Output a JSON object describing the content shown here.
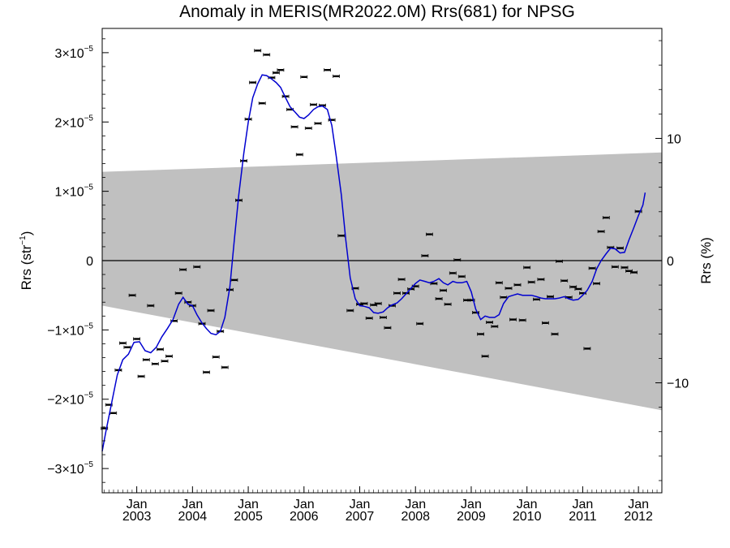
{
  "chart_data": {
    "type": "scatter",
    "title": "Anomaly in MERIS(MR2022.0M) Rrs(681) for NPSG",
    "ylabel_left": {
      "base": "Rrs (str",
      "sup": "−1",
      "tail": ")"
    },
    "ylabel_right": "Rrs (%)",
    "xlim": [
      2002.38,
      2012.42
    ],
    "ylim_left": [
      -3.35e-05,
      3.35e-05
    ],
    "ylim_right": [
      -19,
      19
    ],
    "y_ticks_left": [
      {
        "value": 3e-05,
        "mant": "3×10",
        "exp": "−5"
      },
      {
        "value": 2e-05,
        "mant": "2×10",
        "exp": "−5"
      },
      {
        "value": 1e-05,
        "mant": "1×10",
        "exp": "−5"
      },
      {
        "value": 0,
        "mant": "0",
        "exp": ""
      },
      {
        "value": -1e-05,
        "mant": "−1×10",
        "exp": "−5"
      },
      {
        "value": -2e-05,
        "mant": "−2×10",
        "exp": "−5"
      },
      {
        "value": -3e-05,
        "mant": "−3×10",
        "exp": "−5"
      }
    ],
    "y_ticks_right": [
      {
        "value": 10,
        "label": "10"
      },
      {
        "value": 0,
        "label": "0"
      },
      {
        "value": -10,
        "label": "−10"
      }
    ],
    "x_ticks": [
      {
        "value": 2003.0,
        "month": "Jan",
        "year": "2003"
      },
      {
        "value": 2004.0,
        "month": "Jan",
        "year": "2004"
      },
      {
        "value": 2005.0,
        "month": "Jan",
        "year": "2005"
      },
      {
        "value": 2006.0,
        "month": "Jan",
        "year": "2006"
      },
      {
        "value": 2007.0,
        "month": "Jan",
        "year": "2007"
      },
      {
        "value": 2008.0,
        "month": "Jan",
        "year": "2008"
      },
      {
        "value": 2009.0,
        "month": "Jan",
        "year": "2009"
      },
      {
        "value": 2010.0,
        "month": "Jan",
        "year": "2010"
      },
      {
        "value": 2011.0,
        "month": "Jan",
        "year": "2011"
      },
      {
        "value": 2012.0,
        "month": "Jan",
        "year": "2012"
      }
    ],
    "uncertainty_band": {
      "color": "#c0c0c0",
      "upper": [
        [
          2002.38,
          1.28e-05
        ],
        [
          2012.42,
          1.56e-05
        ]
      ],
      "lower": [
        [
          2002.38,
          -6.5e-06
        ],
        [
          2012.42,
          -2.16e-05
        ]
      ]
    },
    "zero_line_color": "#000000",
    "series": [
      {
        "kind": "monthly_points",
        "color": "#000000",
        "points": [
          [
            2002.42,
            -2.42e-05
          ],
          [
            2002.5,
            -2.08e-05
          ],
          [
            2002.58,
            -2.2e-05
          ],
          [
            2002.67,
            -1.58e-05
          ],
          [
            2002.75,
            -1.19e-05
          ],
          [
            2002.83,
            -1.25e-05
          ],
          [
            2002.92,
            -5e-06
          ],
          [
            2003.0,
            -1.13e-05
          ],
          [
            2003.08,
            -1.67e-05
          ],
          [
            2003.17,
            -1.43e-05
          ],
          [
            2003.25,
            -6.5e-06
          ],
          [
            2003.33,
            -1.49e-05
          ],
          [
            2003.42,
            -1.28e-05
          ],
          [
            2003.5,
            -1.45e-05
          ],
          [
            2003.58,
            -1.38e-05
          ],
          [
            2003.67,
            -8.7e-06
          ],
          [
            2003.75,
            -4.7e-06
          ],
          [
            2003.83,
            -1.3e-06
          ],
          [
            2003.92,
            -6e-06
          ],
          [
            2004.0,
            -6.5e-06
          ],
          [
            2004.08,
            -9e-07
          ],
          [
            2004.17,
            -9.1e-06
          ],
          [
            2004.25,
            -1.61e-05
          ],
          [
            2004.33,
            -7.2e-06
          ],
          [
            2004.42,
            -1.39e-05
          ],
          [
            2004.5,
            -1.02e-05
          ],
          [
            2004.58,
            -1.54e-05
          ],
          [
            2004.67,
            -4.2e-06
          ],
          [
            2004.75,
            -2.8e-06
          ],
          [
            2004.83,
            8.7e-06
          ],
          [
            2004.92,
            1.44e-05
          ],
          [
            2005.0,
            2.04e-05
          ],
          [
            2005.08,
            2.57e-05
          ],
          [
            2005.17,
            3.03e-05
          ],
          [
            2005.25,
            2.27e-05
          ],
          [
            2005.33,
            2.97e-05
          ],
          [
            2005.42,
            2.64e-05
          ],
          [
            2005.5,
            2.71e-05
          ],
          [
            2005.58,
            2.75e-05
          ],
          [
            2005.67,
            2.37e-05
          ],
          [
            2005.75,
            2.18e-05
          ],
          [
            2005.83,
            1.93e-05
          ],
          [
            2005.92,
            1.53e-05
          ],
          [
            2006.0,
            2.65e-05
          ],
          [
            2006.08,
            1.91e-05
          ],
          [
            2006.17,
            2.25e-05
          ],
          [
            2006.25,
            1.98e-05
          ],
          [
            2006.33,
            2.24e-05
          ],
          [
            2006.42,
            2.75e-05
          ],
          [
            2006.5,
            2.03e-05
          ],
          [
            2006.58,
            2.66e-05
          ],
          [
            2006.67,
            3.6e-06
          ],
          [
            2006.83,
            -7.2e-06
          ],
          [
            2006.92,
            -4e-06
          ],
          [
            2007.0,
            -6.3e-06
          ],
          [
            2007.08,
            -6.2e-06
          ],
          [
            2007.17,
            -8.3e-06
          ],
          [
            2007.25,
            -6.4e-06
          ],
          [
            2007.33,
            -6.2e-06
          ],
          [
            2007.42,
            -8.2e-06
          ],
          [
            2007.5,
            -9.7e-06
          ],
          [
            2007.58,
            -6.5e-06
          ],
          [
            2007.67,
            -4.7e-06
          ],
          [
            2007.75,
            -2.7e-06
          ],
          [
            2007.83,
            -4.7e-06
          ],
          [
            2007.92,
            -4.1e-06
          ],
          [
            2008.0,
            -3.7e-06
          ],
          [
            2008.08,
            -9.1e-06
          ],
          [
            2008.17,
            7e-07
          ],
          [
            2008.25,
            3.8e-06
          ],
          [
            2008.33,
            -3.3e-06
          ],
          [
            2008.42,
            -5.5e-06
          ],
          [
            2008.5,
            -4.3e-06
          ],
          [
            2008.58,
            -6.3e-06
          ],
          [
            2008.67,
            -1.8e-06
          ],
          [
            2008.75,
            1e-07
          ],
          [
            2008.83,
            -2.3e-06
          ],
          [
            2008.92,
            -5.7e-06
          ],
          [
            2009.0,
            -5.7e-06
          ],
          [
            2009.08,
            -7.5e-06
          ],
          [
            2009.17,
            -1.06e-05
          ],
          [
            2009.25,
            -1.38e-05
          ],
          [
            2009.33,
            -8.9e-06
          ],
          [
            2009.42,
            -9.5e-06
          ],
          [
            2009.5,
            -3.2e-06
          ],
          [
            2009.58,
            -5.3e-06
          ],
          [
            2009.67,
            -4e-06
          ],
          [
            2009.75,
            -8.5e-06
          ],
          [
            2009.83,
            -3.5e-06
          ],
          [
            2009.92,
            -8.6e-06
          ],
          [
            2010.0,
            -1e-06
          ],
          [
            2010.08,
            -3.1e-06
          ],
          [
            2010.17,
            -5.6e-06
          ],
          [
            2010.25,
            -2.7e-06
          ],
          [
            2010.33,
            -9e-06
          ],
          [
            2010.42,
            -5.2e-06
          ],
          [
            2010.5,
            -1.06e-05
          ],
          [
            2010.58,
            -1e-07
          ],
          [
            2010.67,
            -2.9e-06
          ],
          [
            2010.75,
            -5.3e-06
          ],
          [
            2010.83,
            -3.8e-06
          ],
          [
            2010.92,
            -4.1e-06
          ],
          [
            2011.0,
            -4.7e-06
          ],
          [
            2011.08,
            -1.27e-05
          ],
          [
            2011.17,
            -1.1e-06
          ],
          [
            2011.25,
            -3.3e-06
          ],
          [
            2011.33,
            4.2e-06
          ],
          [
            2011.42,
            6.2e-06
          ],
          [
            2011.5,
            1.9e-06
          ],
          [
            2011.58,
            -9e-07
          ],
          [
            2011.67,
            1.8e-06
          ],
          [
            2011.75,
            -1e-06
          ],
          [
            2011.83,
            -1.5e-06
          ],
          [
            2011.92,
            -1.7e-06
          ],
          [
            2012.0,
            7.1e-06
          ]
        ]
      },
      {
        "kind": "running_mean",
        "color": "#0000d0",
        "points": [
          [
            2002.38,
            -2.75e-05
          ],
          [
            2002.45,
            -2.45e-05
          ],
          [
            2002.55,
            -2.05e-05
          ],
          [
            2002.65,
            -1.65e-05
          ],
          [
            2002.75,
            -1.43e-05
          ],
          [
            2002.85,
            -1.35e-05
          ],
          [
            2002.95,
            -1.18e-05
          ],
          [
            2003.05,
            -1.17e-05
          ],
          [
            2003.15,
            -1.3e-05
          ],
          [
            2003.25,
            -1.33e-05
          ],
          [
            2003.35,
            -1.25e-05
          ],
          [
            2003.45,
            -1.1e-05
          ],
          [
            2003.55,
            -9.8e-06
          ],
          [
            2003.65,
            -8.5e-06
          ],
          [
            2003.75,
            -6.3e-06
          ],
          [
            2003.83,
            -5.3e-06
          ],
          [
            2003.92,
            -6.3e-06
          ],
          [
            2004.0,
            -6.5e-06
          ],
          [
            2004.08,
            -7.8e-06
          ],
          [
            2004.17,
            -9e-06
          ],
          [
            2004.25,
            -9.8e-06
          ],
          [
            2004.33,
            -1.05e-05
          ],
          [
            2004.42,
            -1.07e-05
          ],
          [
            2004.5,
            -1.02e-05
          ],
          [
            2004.58,
            -8.2e-06
          ],
          [
            2004.67,
            -3.8e-06
          ],
          [
            2004.75,
            3e-06
          ],
          [
            2004.83,
            9.5e-06
          ],
          [
            2004.92,
            1.55e-05
          ],
          [
            2005.0,
            2e-05
          ],
          [
            2005.08,
            2.35e-05
          ],
          [
            2005.17,
            2.55e-05
          ],
          [
            2005.25,
            2.68e-05
          ],
          [
            2005.33,
            2.67e-05
          ],
          [
            2005.42,
            2.62e-05
          ],
          [
            2005.5,
            2.57e-05
          ],
          [
            2005.58,
            2.5e-05
          ],
          [
            2005.67,
            2.35e-05
          ],
          [
            2005.75,
            2.22e-05
          ],
          [
            2005.83,
            2.15e-05
          ],
          [
            2005.92,
            2.07e-05
          ],
          [
            2006.0,
            2.05e-05
          ],
          [
            2006.08,
            2.1e-05
          ],
          [
            2006.17,
            2.18e-05
          ],
          [
            2006.25,
            2.22e-05
          ],
          [
            2006.33,
            2.23e-05
          ],
          [
            2006.42,
            2.18e-05
          ],
          [
            2006.5,
            1.95e-05
          ],
          [
            2006.58,
            1.5e-05
          ],
          [
            2006.67,
            9.5e-06
          ],
          [
            2006.75,
            3e-06
          ],
          [
            2006.83,
            -2.5e-06
          ],
          [
            2006.92,
            -5.5e-06
          ],
          [
            2007.0,
            -6.5e-06
          ],
          [
            2007.08,
            -6.6e-06
          ],
          [
            2007.17,
            -6.8e-06
          ],
          [
            2007.25,
            -7.5e-06
          ],
          [
            2007.33,
            -7.6e-06
          ],
          [
            2007.42,
            -7.4e-06
          ],
          [
            2007.5,
            -6.8e-06
          ],
          [
            2007.58,
            -6.4e-06
          ],
          [
            2007.67,
            -6.1e-06
          ],
          [
            2007.75,
            -5.5e-06
          ],
          [
            2007.83,
            -4.8e-06
          ],
          [
            2007.92,
            -4e-06
          ],
          [
            2008.0,
            -3.3e-06
          ],
          [
            2008.08,
            -2.8e-06
          ],
          [
            2008.17,
            -3e-06
          ],
          [
            2008.25,
            -3.2e-06
          ],
          [
            2008.33,
            -3e-06
          ],
          [
            2008.42,
            -2.6e-06
          ],
          [
            2008.5,
            -3.2e-06
          ],
          [
            2008.58,
            -3.5e-06
          ],
          [
            2008.67,
            -3e-06
          ],
          [
            2008.75,
            -3.2e-06
          ],
          [
            2008.83,
            -3.2e-06
          ],
          [
            2008.92,
            -3e-06
          ],
          [
            2009.0,
            -4.5e-06
          ],
          [
            2009.08,
            -7e-06
          ],
          [
            2009.17,
            -8.5e-06
          ],
          [
            2009.25,
            -8e-06
          ],
          [
            2009.33,
            -8.2e-06
          ],
          [
            2009.42,
            -8.2e-06
          ],
          [
            2009.5,
            -7.8e-06
          ],
          [
            2009.58,
            -6.2e-06
          ],
          [
            2009.67,
            -5.2e-06
          ],
          [
            2009.75,
            -5e-06
          ],
          [
            2009.83,
            -4.8e-06
          ],
          [
            2009.92,
            -5e-06
          ],
          [
            2010.0,
            -5e-06
          ],
          [
            2010.08,
            -5e-06
          ],
          [
            2010.17,
            -5.2e-06
          ],
          [
            2010.25,
            -5.4e-06
          ],
          [
            2010.33,
            -5.5e-06
          ],
          [
            2010.42,
            -5.5e-06
          ],
          [
            2010.5,
            -5.5e-06
          ],
          [
            2010.58,
            -5.4e-06
          ],
          [
            2010.67,
            -5.2e-06
          ],
          [
            2010.75,
            -5.5e-06
          ],
          [
            2010.83,
            -5.7e-06
          ],
          [
            2010.92,
            -5.6e-06
          ],
          [
            2011.0,
            -5e-06
          ],
          [
            2011.08,
            -4.3e-06
          ],
          [
            2011.17,
            -3e-06
          ],
          [
            2011.25,
            -1.2e-06
          ],
          [
            2011.33,
            0.0
          ],
          [
            2011.42,
            1e-06
          ],
          [
            2011.5,
            1.8e-06
          ],
          [
            2011.58,
            1.7e-06
          ],
          [
            2011.67,
            1.1e-06
          ],
          [
            2011.75,
            1.2e-06
          ],
          [
            2011.83,
            3e-06
          ],
          [
            2011.92,
            4.8e-06
          ],
          [
            2012.0,
            6.5e-06
          ],
          [
            2012.08,
            8e-06
          ],
          [
            2012.12,
            9.8e-06
          ]
        ]
      }
    ],
    "grid": false,
    "legend": "none"
  }
}
